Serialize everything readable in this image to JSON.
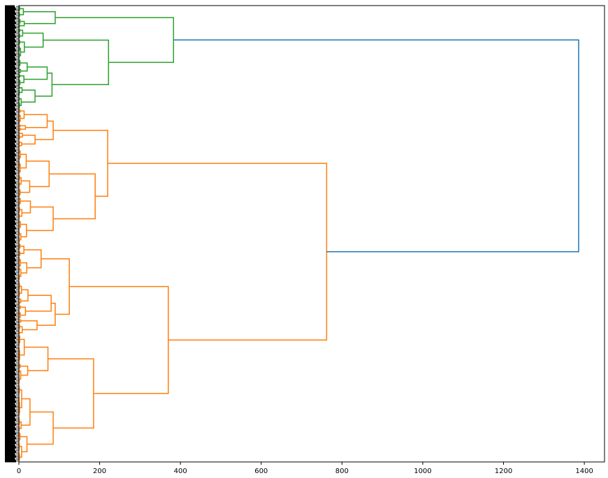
{
  "chart_data": {
    "type": "dendrogram",
    "orientation": "horizontal",
    "title": "",
    "xlabel": "",
    "ylabel": "",
    "xlim": [
      0,
      1450
    ],
    "x_ticks": [
      0,
      200,
      400,
      600,
      800,
      1000,
      1200,
      1400
    ],
    "x_tick_labels": [
      "0",
      "200",
      "400",
      "600",
      "800",
      "1000",
      "1200",
      "1400"
    ],
    "leaf_count": 300,
    "leaf_labels_legible": false,
    "colors": {
      "root": "#1f77b4",
      "cluster_a": "#2ca02c",
      "cluster_b": "#ff7f0e",
      "axis": "#000000",
      "leaf_labels": "#000000"
    },
    "clusters": [
      {
        "name": "cluster_a",
        "color": "#2ca02c",
        "leaf_start": 0,
        "leaf_end": 67,
        "merge_height": 383
      },
      {
        "name": "cluster_b",
        "color": "#ff7f0e",
        "leaf_start": 68,
        "leaf_end": 299,
        "merge_height": 762
      }
    ],
    "root_merge_height": 1386,
    "major_merges": [
      {
        "height": 1386,
        "cluster": "root"
      },
      {
        "height": 383,
        "cluster": "cluster_a"
      },
      {
        "height": 222,
        "cluster": "cluster_a"
      },
      {
        "height": 90,
        "cluster": "cluster_a"
      },
      {
        "height": 82,
        "cluster": "cluster_a"
      },
      {
        "height": 762,
        "cluster": "cluster_b"
      },
      {
        "height": 220,
        "cluster": "cluster_b"
      },
      {
        "height": 189,
        "cluster": "cluster_b"
      },
      {
        "height": 370,
        "cluster": "cluster_b"
      },
      {
        "height": 185,
        "cluster": "cluster_b"
      },
      {
        "height": 125,
        "cluster": "cluster_b"
      },
      {
        "height": 85,
        "cluster": "cluster_b"
      }
    ]
  }
}
